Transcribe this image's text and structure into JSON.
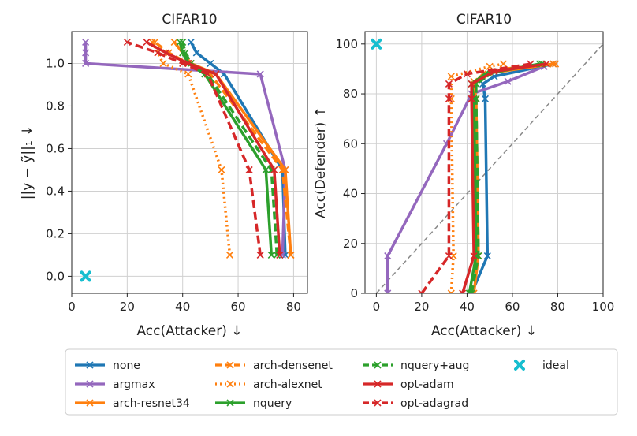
{
  "chart_data": [
    {
      "type": "line",
      "title": "CIFAR10",
      "xlabel": "Acc(Attacker) ↓",
      "ylabel": "||y − ỹ||₁ ↓",
      "xlim": [
        0,
        85
      ],
      "ylim": [
        -0.08,
        1.15
      ],
      "xticks": [
        "0",
        "20",
        "40",
        "60",
        "80"
      ],
      "xtick_values": [
        0,
        20,
        40,
        60,
        80
      ],
      "yticks": [
        "0.0",
        "0.2",
        "0.4",
        "0.6",
        "0.8",
        "1.0"
      ],
      "ytick_values": [
        0,
        0.2,
        0.4,
        0.6,
        0.8,
        1.0
      ],
      "grid": true,
      "series": [
        {
          "name": "none",
          "x": [
            77,
            76,
            55,
            50,
            45,
            43
          ],
          "y": [
            0.1,
            0.5,
            0.95,
            1.0,
            1.05,
            1.1
          ]
        },
        {
          "name": "argmax",
          "x": [
            76,
            77,
            68,
            5,
            5,
            5
          ],
          "y": [
            0.1,
            0.5,
            0.95,
            1.0,
            1.05,
            1.1
          ]
        },
        {
          "name": "arch-resnet34",
          "x": [
            79,
            77,
            52,
            43,
            40,
            37
          ],
          "y": [
            0.1,
            0.5,
            0.95,
            1.0,
            1.05,
            1.1
          ]
        },
        {
          "name": "arch-densenet",
          "x": [
            79,
            76,
            50,
            42,
            35,
            30
          ],
          "y": [
            0.1,
            0.5,
            0.95,
            1.0,
            1.05,
            1.1
          ]
        },
        {
          "name": "arch-alexnet",
          "x": [
            57,
            54,
            42,
            33,
            31,
            29
          ],
          "y": [
            0.1,
            0.5,
            0.95,
            1.0,
            1.05,
            1.1
          ]
        },
        {
          "name": "nquery",
          "x": [
            72,
            70,
            48,
            42,
            40,
            39
          ],
          "y": [
            0.1,
            0.5,
            0.95,
            1.0,
            1.05,
            1.1
          ]
        },
        {
          "name": "nquery+aug",
          "x": [
            74,
            72,
            49,
            43,
            41,
            40
          ],
          "y": [
            0.1,
            0.5,
            0.95,
            1.0,
            1.05,
            1.1
          ]
        },
        {
          "name": "opt-adam",
          "x": [
            75,
            73,
            52,
            42,
            34,
            27
          ],
          "y": [
            0.1,
            0.5,
            0.95,
            1.0,
            1.05,
            1.1
          ]
        },
        {
          "name": "opt-adagrad",
          "x": [
            68,
            64,
            49,
            40,
            31,
            20
          ],
          "y": [
            0.1,
            0.5,
            0.95,
            1.0,
            1.05,
            1.1
          ]
        }
      ],
      "ideal": {
        "name": "ideal",
        "x": 5,
        "y": 0.0
      }
    },
    {
      "type": "line",
      "title": "CIFAR10",
      "xlabel": "Acc(Attacker) ↓",
      "ylabel": "Acc(Defender) ↑",
      "xlim": [
        -5,
        100
      ],
      "ylim": [
        0,
        105
      ],
      "xticks": [
        "0",
        "20",
        "40",
        "60",
        "80",
        "100"
      ],
      "xtick_values": [
        0,
        20,
        40,
        60,
        80,
        100
      ],
      "yticks": [
        "0",
        "20",
        "40",
        "60",
        "80",
        "100"
      ],
      "ytick_values": [
        0,
        20,
        40,
        60,
        80,
        100
      ],
      "grid": true,
      "diagonal": true,
      "series": [
        {
          "name": "none",
          "x": [
            42,
            49,
            48,
            47,
            52,
            78
          ],
          "y": [
            0,
            15,
            78,
            84,
            87,
            92
          ]
        },
        {
          "name": "argmax",
          "x": [
            5,
            5,
            31,
            42,
            58,
            74
          ],
          "y": [
            0,
            15,
            60,
            80,
            85,
            91
          ]
        },
        {
          "name": "arch-resnet34",
          "x": [
            43,
            45,
            44,
            43,
            47,
            78
          ],
          "y": [
            0,
            15,
            78,
            84,
            88,
            92
          ]
        },
        {
          "name": "arch-densenet",
          "x": [
            42,
            45,
            44,
            43,
            56,
            79
          ],
          "y": [
            0,
            15,
            78,
            85,
            90,
            92
          ]
        },
        {
          "name": "arch-alexnet",
          "x": [
            33,
            34,
            33,
            33,
            50,
            56
          ],
          "y": [
            0,
            15,
            78,
            87,
            91,
            92
          ]
        },
        {
          "name": "nquery",
          "x": [
            41,
            44,
            43,
            42,
            48,
            72
          ],
          "y": [
            0,
            15,
            78,
            84,
            88,
            92
          ]
        },
        {
          "name": "nquery+aug",
          "x": [
            42,
            45,
            44,
            44,
            52,
            73
          ],
          "y": [
            0,
            15,
            78,
            84,
            89,
            92
          ]
        },
        {
          "name": "opt-adam",
          "x": [
            38,
            43,
            42,
            42,
            52,
            75
          ],
          "y": [
            0,
            15,
            78,
            84,
            89,
            92
          ]
        },
        {
          "name": "opt-adagrad",
          "x": [
            20,
            32,
            32,
            32,
            40,
            68
          ],
          "y": [
            0,
            15,
            78,
            84,
            88,
            92
          ]
        }
      ],
      "ideal": {
        "name": "ideal",
        "x": 0,
        "y": 100
      }
    }
  ],
  "legend": {
    "placement": "bottom",
    "items": [
      {
        "name": "none",
        "color": "#1f77b4",
        "dash": "solid"
      },
      {
        "name": "argmax",
        "color": "#9467bd",
        "dash": "solid"
      },
      {
        "name": "arch-resnet34",
        "color": "#ff7f0e",
        "dash": "solid"
      },
      {
        "name": "arch-densenet",
        "color": "#ff7f0e",
        "dash": "dashed"
      },
      {
        "name": "arch-alexnet",
        "color": "#ff7f0e",
        "dash": "dotted"
      },
      {
        "name": "nquery",
        "color": "#2ca02c",
        "dash": "solid"
      },
      {
        "name": "nquery+aug",
        "color": "#2ca02c",
        "dash": "dashed"
      },
      {
        "name": "opt-adam",
        "color": "#d62728",
        "dash": "solid"
      },
      {
        "name": "opt-adagrad",
        "color": "#d62728",
        "dash": "dashed"
      },
      {
        "name": "ideal",
        "color": "#17becf",
        "dash": "marker"
      }
    ]
  },
  "colors": {
    "none": "#1f77b4",
    "argmax": "#9467bd",
    "arch": "#ff7f0e",
    "nquery": "#2ca02c",
    "opt": "#d62728",
    "ideal": "#17becf",
    "diagonal": "#888888"
  }
}
